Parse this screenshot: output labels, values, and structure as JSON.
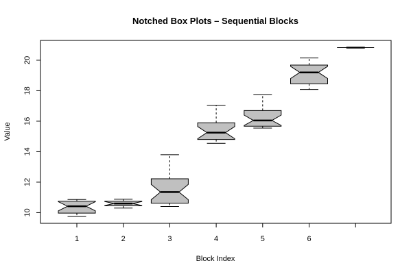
{
  "chart_data": {
    "type": "boxplot",
    "notched": true,
    "title": "Notched Box Plots – Sequential Blocks",
    "xlabel": "Block Index",
    "ylabel": "Value",
    "categories": [
      "1",
      "2",
      "3",
      "4",
      "5",
      "6",
      ""
    ],
    "ylim": [
      9.3,
      21.3
    ],
    "yticks": [
      10,
      12,
      14,
      16,
      18,
      20
    ],
    "box_fill": "#c0c0c0",
    "boxes": [
      {
        "label": "1",
        "whisker_low": 9.75,
        "q1": 9.97,
        "median": 10.42,
        "q3": 10.75,
        "whisker_high": 10.86,
        "notch_low": 10.12,
        "notch_high": 10.72
      },
      {
        "label": "2",
        "whisker_low": 10.3,
        "q1": 10.45,
        "median": 10.6,
        "q3": 10.75,
        "whisker_high": 10.88,
        "notch_low": 10.47,
        "notch_high": 10.73
      },
      {
        "label": "3",
        "whisker_low": 10.4,
        "q1": 10.62,
        "median": 11.35,
        "q3": 12.22,
        "whisker_high": 13.8,
        "notch_low": 10.85,
        "notch_high": 11.85
      },
      {
        "label": "4",
        "whisker_low": 14.55,
        "q1": 14.8,
        "median": 15.25,
        "q3": 15.9,
        "whisker_high": 17.05,
        "notch_low": 14.85,
        "notch_high": 15.65
      },
      {
        "label": "5",
        "whisker_low": 15.55,
        "q1": 15.67,
        "median": 16.05,
        "q3": 16.7,
        "whisker_high": 17.75,
        "notch_low": 15.72,
        "notch_high": 16.4
      },
      {
        "label": "6",
        "whisker_low": 18.08,
        "q1": 18.45,
        "median": 19.2,
        "q3": 19.68,
        "whisker_high": 20.15,
        "notch_low": 18.8,
        "notch_high": 19.6
      },
      {
        "label": "",
        "whisker_low": 20.83,
        "q1": 20.83,
        "median": 20.83,
        "q3": 20.83,
        "whisker_high": 20.83,
        "notch_low": 20.83,
        "notch_high": 20.83
      }
    ]
  }
}
